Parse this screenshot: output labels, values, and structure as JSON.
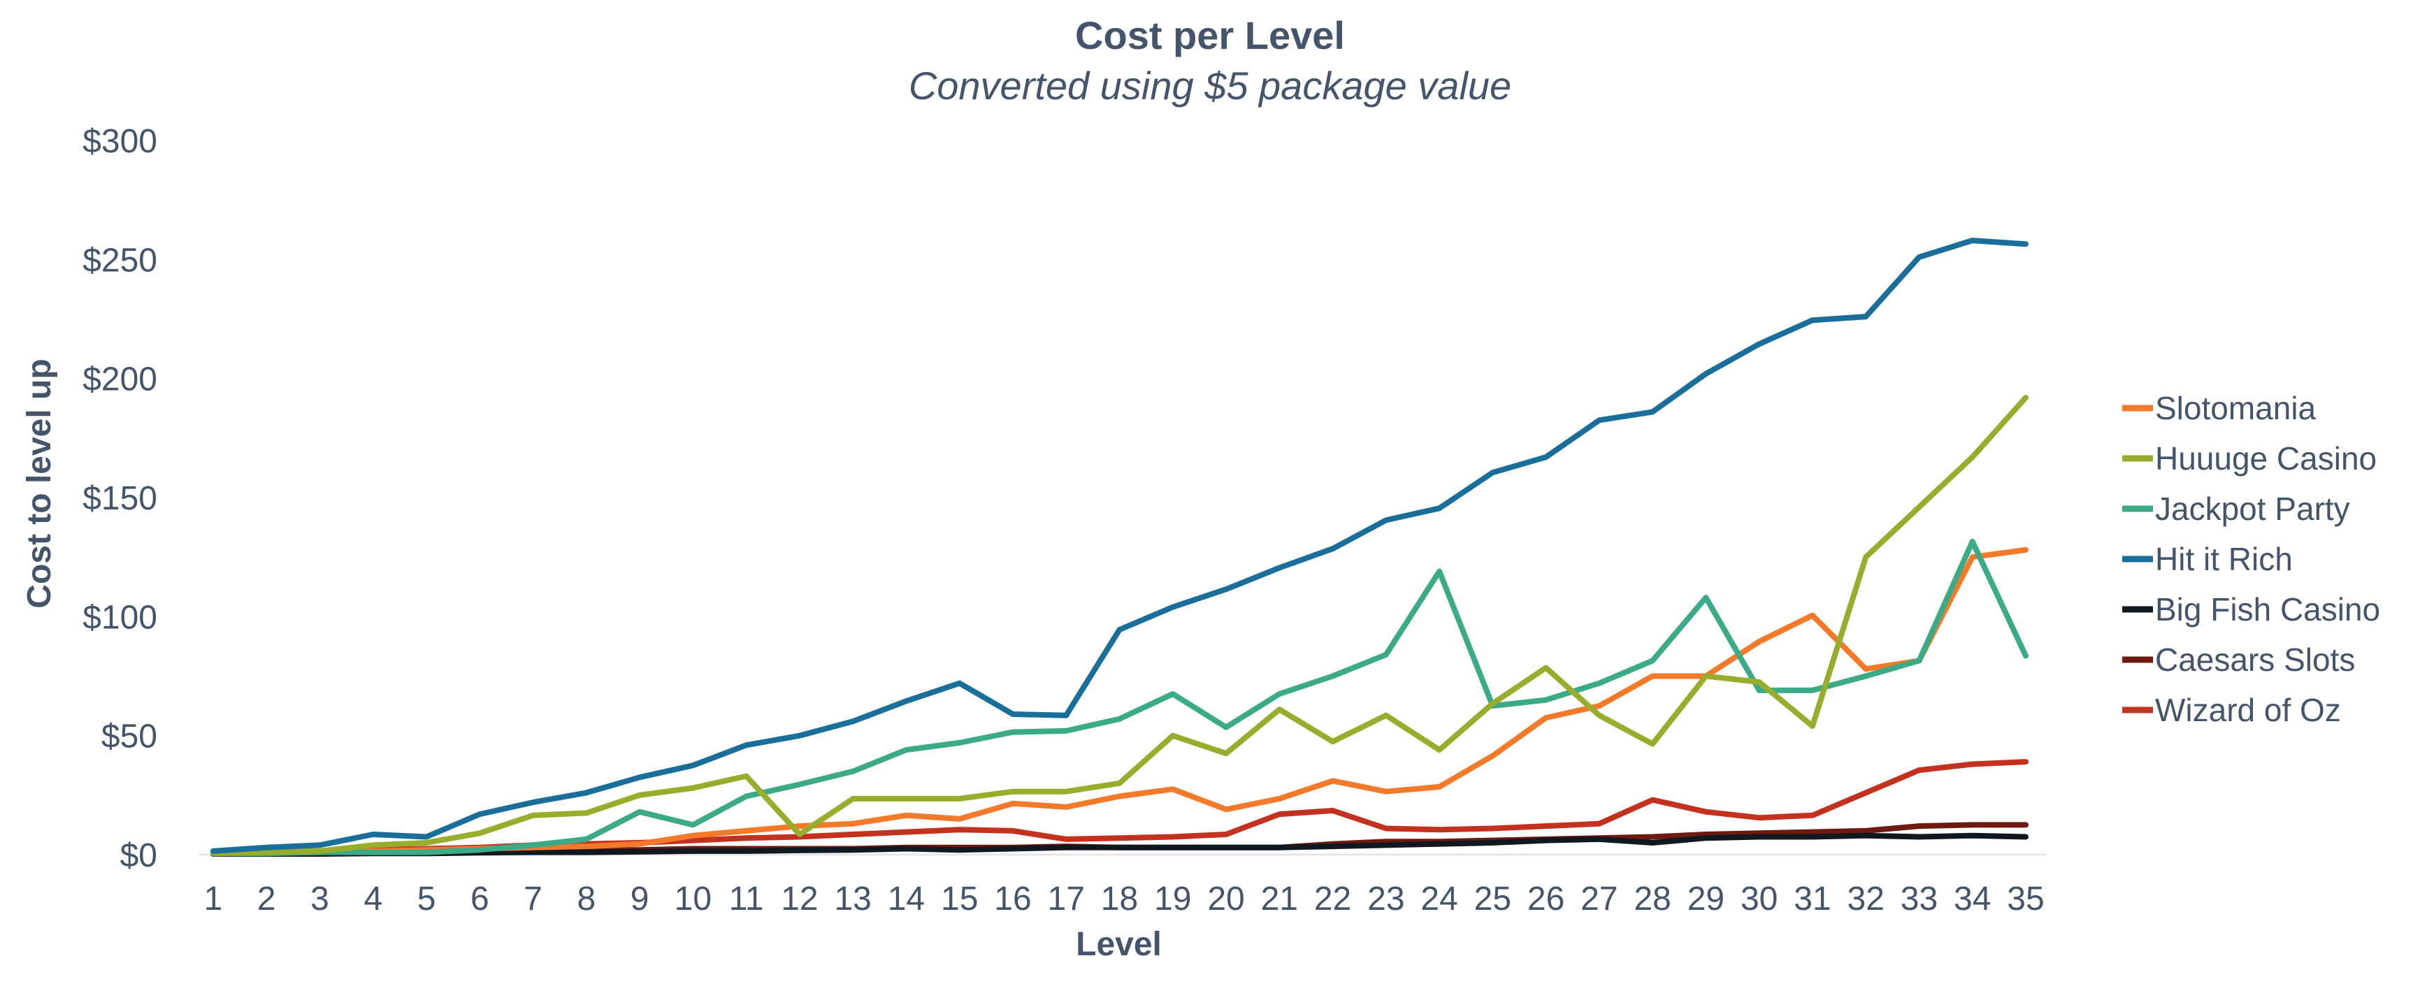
{
  "chart_data": {
    "type": "line",
    "title": "Cost per Level",
    "subtitle": "Converted using $5 package value",
    "xlabel": "Level",
    "ylabel": "Cost to level up",
    "ylim": [
      0,
      300
    ],
    "y_ticks": [
      0,
      50,
      100,
      150,
      200,
      250,
      300
    ],
    "y_tick_labels": [
      "$0",
      "$50",
      "$100",
      "$150",
      "$200",
      "$250",
      "$300"
    ],
    "x": [
      1,
      2,
      3,
      4,
      5,
      6,
      7,
      8,
      9,
      10,
      11,
      12,
      13,
      14,
      15,
      16,
      17,
      18,
      19,
      20,
      21,
      22,
      23,
      24,
      25,
      26,
      27,
      28,
      29,
      30,
      31,
      32,
      33,
      34,
      35
    ],
    "legend_position": "right",
    "grid": false,
    "series": [
      {
        "name": "Slotomania",
        "color": "#f47a2a",
        "values": [
          0.5,
          0.8,
          1,
          1.5,
          2,
          2.5,
          3,
          3.5,
          4.5,
          8,
          10,
          12,
          13,
          16.5,
          15,
          21.5,
          20,
          24.5,
          27.5,
          19,
          23.5,
          31,
          26.5,
          28.5,
          41.5,
          57.5,
          62.5,
          75,
          75,
          89.5,
          100.5,
          78,
          81.5,
          125,
          128
        ]
      },
      {
        "name": "Huuuge Casino",
        "color": "#97ad2c",
        "values": [
          0.5,
          1,
          1.5,
          4,
          5,
          9,
          16.5,
          17.5,
          25,
          28,
          33,
          8.5,
          23.5,
          23.5,
          23.5,
          26.5,
          26.5,
          30,
          50,
          42.5,
          61,
          47.5,
          58.5,
          44,
          63.5,
          78.5,
          58.5,
          46.5,
          75,
          72.5,
          54,
          125,
          146,
          167,
          192
        ]
      },
      {
        "name": "Jackpot Party",
        "color": "#3aaa87",
        "values": [
          0.5,
          0.5,
          1,
          1,
          1,
          2,
          4,
          6.5,
          18,
          12.5,
          24.5,
          29.5,
          35,
          44,
          47,
          51.5,
          52,
          57,
          67.5,
          53.5,
          67.5,
          75,
          84,
          119,
          62.5,
          65,
          72,
          81.5,
          108,
          69,
          69,
          75,
          81.5,
          131.5,
          83.5
        ]
      },
      {
        "name": "Hit it Rich",
        "color": "#1a6f9a",
        "values": [
          1.5,
          3,
          4,
          8.5,
          7.5,
          17,
          22,
          26,
          32.5,
          37.5,
          46,
          50,
          56,
          64.5,
          72,
          59,
          58.5,
          94.5,
          104,
          111.5,
          120.5,
          128.5,
          140.5,
          145.5,
          160.5,
          167,
          182.5,
          186,
          202,
          214.5,
          224.5,
          226,
          251,
          258,
          256.5
        ]
      },
      {
        "name": "Big Fish Casino",
        "color": "#101820",
        "values": [
          0.3,
          0.3,
          0.3,
          0.5,
          0.5,
          0.8,
          1,
          1,
          1.2,
          1.5,
          1.5,
          1.8,
          2,
          2.5,
          2,
          2.5,
          3,
          3,
          3,
          3,
          3,
          3.5,
          4,
          4.5,
          5,
          6,
          6.5,
          5,
          7,
          7.5,
          7.5,
          8,
          7.5,
          8,
          7.5
        ]
      },
      {
        "name": "Caesars Slots",
        "color": "#6e1a10",
        "values": [
          0.3,
          0.5,
          0.5,
          0.8,
          1,
          1.5,
          2,
          2,
          2,
          2.5,
          2.5,
          2.5,
          2.5,
          3,
          3,
          3,
          3.5,
          3,
          3,
          3,
          3,
          4.5,
          5.5,
          5.5,
          6,
          6.5,
          7,
          7.5,
          8.5,
          9,
          9.5,
          10,
          12,
          12.5,
          12.5
        ]
      },
      {
        "name": "Wizard of Oz",
        "color": "#c3321f",
        "values": [
          0.5,
          1,
          1.5,
          2,
          2.5,
          3,
          4,
          4.5,
          5,
          6,
          7,
          7.5,
          8.5,
          9.5,
          10.5,
          10,
          6.5,
          7,
          7.5,
          8.5,
          17,
          18.5,
          11,
          10.5,
          11,
          12,
          13,
          23,
          18,
          15.5,
          16.5,
          26,
          35.5,
          38,
          39
        ]
      }
    ]
  }
}
